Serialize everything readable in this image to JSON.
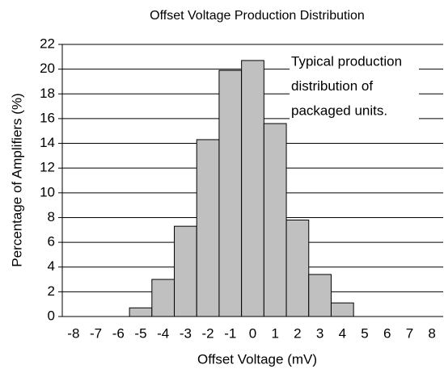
{
  "chart_data": {
    "type": "bar",
    "title": "Offset Voltage Production Distribution",
    "x_label": "Offset Voltage (mV)",
    "y_label": "Percentage of Amplifiers (%)",
    "categories": [
      "-8",
      "-7",
      "-6",
      "-5",
      "-4",
      "-3",
      "-2",
      "-1",
      "0",
      "1",
      "2",
      "3",
      "4",
      "5",
      "6",
      "7",
      "8"
    ],
    "values": [
      0,
      0,
      0,
      0.7,
      3,
      7.3,
      14.3,
      19.9,
      20.7,
      15.6,
      7.8,
      3.4,
      1.1,
      0,
      0,
      0,
      0
    ],
    "color": "#c0c0c0",
    "ylim": [
      0,
      22
    ],
    "yticks": [
      0,
      2,
      4,
      6,
      8,
      10,
      12,
      14,
      16,
      18,
      20,
      22
    ],
    "grid": true,
    "annotation": [
      "Typical production",
      "distribution of",
      "packaged units."
    ]
  }
}
